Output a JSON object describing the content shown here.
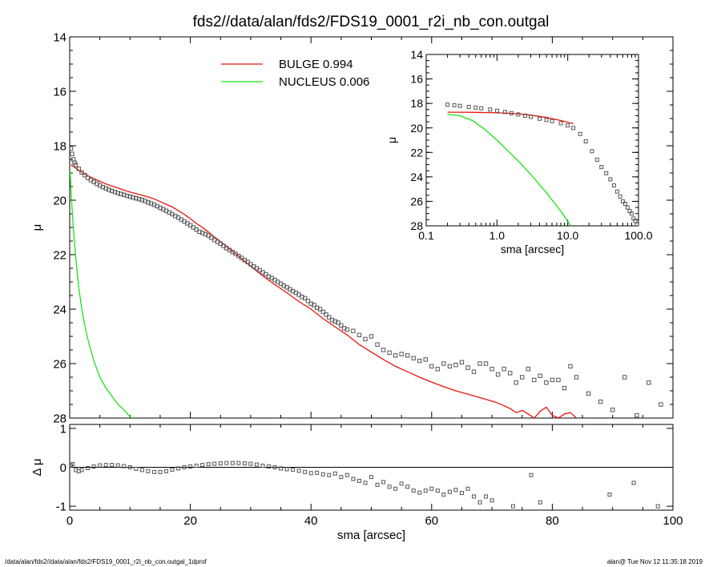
{
  "title": "fds2//data/alan/fds2/FDS19_0001_r2i_nb_con.outgal",
  "footer": {
    "left": "/data/alan/fds2//data/alan/fds2/FDS19_0001_r2i_nb_con.outgal_1dprof",
    "right": "alan@  Tue Nov 12 11:35:18 2019"
  },
  "colors": {
    "bulge": "#e8140f",
    "nucleus": "#19e619",
    "data": "#555555",
    "axis": "#000000"
  },
  "chart_data": [
    {
      "id": "main",
      "type": "scatter",
      "title": "fds2//data/alan/fds2/FDS19_0001_r2i_nb_con.outgal",
      "xlabel": "",
      "ylabel": "μ",
      "xlim": [
        0,
        100
      ],
      "ylim": [
        28,
        14
      ],
      "yreversed": true,
      "yticks": [
        "14",
        "16",
        "18",
        "20",
        "22",
        "24",
        "26",
        "28"
      ],
      "ytick_values": [
        14,
        16,
        18,
        20,
        22,
        24,
        26,
        28
      ],
      "legend": [
        {
          "label": "BULGE",
          "value": "0.994",
          "color": "#e8140f"
        },
        {
          "label": "NUCLEUS",
          "value": "0.006",
          "color": "#19e619"
        }
      ],
      "series": [
        {
          "name": "BULGE",
          "kind": "line",
          "color": "#e8140f",
          "x": [
            0.2,
            1,
            2,
            3,
            4,
            5,
            6,
            7,
            8,
            9,
            10,
            11,
            12,
            13,
            14,
            15,
            16,
            17,
            18,
            19,
            20,
            21,
            22,
            23,
            24,
            25,
            26,
            27,
            28,
            29,
            30,
            32,
            34,
            36,
            38,
            40,
            42,
            44,
            46,
            48,
            50,
            52,
            54,
            56,
            58,
            60,
            62,
            64,
            66,
            68,
            70,
            71,
            72,
            73,
            74,
            75,
            76,
            77,
            78,
            79,
            80,
            81,
            82,
            83,
            84
          ],
          "y": [
            18.7,
            18.82,
            18.97,
            19.1,
            19.21,
            19.31,
            19.4,
            19.48,
            19.55,
            19.63,
            19.7,
            19.76,
            19.82,
            19.88,
            19.95,
            20.05,
            20.15,
            20.25,
            20.38,
            20.52,
            20.68,
            20.85,
            21.0,
            21.17,
            21.35,
            21.52,
            21.7,
            21.88,
            22.05,
            22.25,
            22.42,
            22.78,
            23.1,
            23.4,
            23.72,
            24.0,
            24.35,
            24.65,
            24.95,
            25.3,
            25.58,
            25.85,
            26.1,
            26.3,
            26.5,
            26.68,
            26.85,
            27.0,
            27.12,
            27.25,
            27.38,
            27.45,
            27.55,
            27.65,
            27.8,
            27.72,
            27.85,
            28.0,
            27.75,
            27.6,
            27.9,
            28.0,
            27.85,
            27.8,
            28.0
          ]
        },
        {
          "name": "NUCLEUS",
          "kind": "line",
          "color": "#19e619",
          "x": [
            0.05,
            0.3,
            0.6,
            1,
            1.5,
            2,
            2.5,
            3,
            3.5,
            4,
            5,
            6,
            7,
            8,
            9,
            10,
            11,
            12
          ],
          "y": [
            18.9,
            20.0,
            21.0,
            22.1,
            23.2,
            24.0,
            24.6,
            25.1,
            25.5,
            25.9,
            26.5,
            26.9,
            27.2,
            27.5,
            27.7,
            27.95,
            28.1,
            28.3
          ]
        },
        {
          "name": "data",
          "kind": "points",
          "color": "#555555",
          "x": [
            0.2,
            0.4,
            0.6,
            0.8,
            1,
            1.5,
            2,
            2.5,
            3,
            3.5,
            4,
            4.5,
            5,
            5.5,
            6,
            6.5,
            7,
            7.5,
            8,
            8.5,
            9,
            9.5,
            10,
            10.5,
            11,
            11.5,
            12,
            12.5,
            13,
            13.5,
            14,
            14.5,
            15,
            15.5,
            16,
            16.5,
            17,
            17.5,
            18,
            18.5,
            19,
            19.5,
            20,
            20.5,
            21,
            21.5,
            22,
            22.5,
            23,
            23.5,
            24,
            24.5,
            25,
            25.5,
            26,
            26.5,
            27,
            27.5,
            28,
            28.5,
            29,
            29.5,
            30,
            30.5,
            31,
            31.5,
            32,
            32.5,
            33,
            33.5,
            34,
            34.5,
            35,
            35.5,
            36,
            36.5,
            37,
            37.5,
            38,
            38.5,
            39,
            39.5,
            40,
            40.5,
            41,
            41.5,
            42,
            42.5,
            43,
            43.5,
            44,
            44.5,
            45,
            45.5,
            46,
            47,
            48,
            49,
            50,
            51,
            52,
            53,
            54,
            55,
            56,
            57,
            58,
            59,
            60,
            61,
            62,
            63,
            64,
            65,
            66,
            67,
            68,
            69,
            70,
            71,
            72,
            73,
            74,
            75,
            76,
            77,
            78,
            79,
            80,
            81,
            82,
            83,
            84,
            86,
            88,
            90,
            92,
            94,
            96,
            98
          ],
          "y": [
            18.1,
            18.3,
            18.5,
            18.62,
            18.7,
            18.85,
            18.98,
            19.08,
            19.18,
            19.26,
            19.33,
            19.4,
            19.46,
            19.52,
            19.57,
            19.62,
            19.66,
            19.7,
            19.74,
            19.77,
            19.8,
            19.84,
            19.87,
            19.9,
            19.93,
            19.96,
            19.99,
            20.03,
            20.08,
            20.12,
            20.17,
            20.22,
            20.28,
            20.33,
            20.39,
            20.45,
            20.51,
            20.58,
            20.64,
            20.71,
            20.78,
            20.85,
            20.92,
            21.0,
            21.08,
            21.16,
            21.2,
            21.25,
            21.3,
            21.38,
            21.46,
            21.53,
            21.6,
            21.68,
            21.76,
            21.83,
            21.9,
            21.97,
            22.05,
            22.12,
            22.2,
            22.27,
            22.35,
            22.43,
            22.5,
            22.57,
            22.65,
            22.72,
            22.8,
            22.86,
            22.93,
            23.0,
            23.07,
            23.14,
            23.2,
            23.27,
            23.34,
            23.4,
            23.47,
            23.55,
            23.6,
            23.7,
            23.8,
            23.85,
            23.95,
            24.0,
            24.1,
            24.2,
            24.3,
            24.4,
            24.45,
            24.5,
            24.6,
            24.7,
            24.75,
            24.8,
            24.95,
            25.1,
            25.0,
            25.3,
            25.5,
            25.6,
            25.7,
            25.65,
            25.7,
            25.8,
            25.9,
            25.85,
            26.1,
            26.2,
            26.0,
            26.1,
            26.05,
            25.95,
            26.15,
            26.3,
            26.0,
            26.0,
            26.2,
            26.4,
            26.2,
            26.35,
            26.7,
            26.5,
            26.2,
            26.6,
            26.45,
            26.7,
            26.6,
            26.6,
            26.9,
            26.1,
            26.5,
            27.1,
            27.4,
            27.7,
            26.5,
            27.9,
            26.7,
            27.5
          ]
        }
      ]
    },
    {
      "id": "inset",
      "type": "scatter",
      "xlabel": "sma [arcsec]",
      "ylabel": "μ",
      "xscale": "log",
      "xlim": [
        0.1,
        100
      ],
      "ylim": [
        28,
        14
      ],
      "yreversed": true,
      "xticks": [
        "0.1",
        "1.0",
        "10.0",
        "100.0"
      ],
      "xtick_values": [
        0.1,
        1,
        10,
        100
      ],
      "yticks": [
        "14",
        "16",
        "18",
        "20",
        "22",
        "24",
        "26",
        "28"
      ],
      "ytick_values": [
        14,
        16,
        18,
        20,
        22,
        24,
        26,
        28
      ],
      "series": [
        {
          "name": "BULGE",
          "kind": "line",
          "color": "#e8140f",
          "x": [
            0.2,
            0.3,
            0.5,
            0.8,
            1.2,
            2,
            3,
            5,
            8,
            12
          ],
          "y": [
            18.72,
            18.72,
            18.73,
            18.75,
            18.78,
            18.85,
            18.95,
            19.15,
            19.4,
            19.65
          ]
        },
        {
          "name": "NUCLEUS",
          "kind": "line",
          "color": "#19e619",
          "x": [
            0.2,
            0.3,
            0.45,
            0.7,
            1,
            1.5,
            2,
            3,
            5,
            8,
            12
          ],
          "y": [
            18.9,
            19.0,
            19.4,
            20.2,
            21.0,
            22.0,
            22.7,
            23.8,
            25.3,
            26.8,
            28.3
          ]
        },
        {
          "name": "data",
          "kind": "points",
          "color": "#555555",
          "x": [
            0.2,
            0.25,
            0.3,
            0.4,
            0.5,
            0.6,
            0.8,
            1,
            1.3,
            1.6,
            2,
            2.5,
            3,
            4,
            5,
            6,
            8,
            10,
            12,
            15,
            18,
            22,
            26,
            30,
            35,
            40,
            45,
            50,
            55,
            60,
            65,
            70,
            75,
            80,
            85,
            90,
            95
          ],
          "y": [
            18.1,
            18.15,
            18.2,
            18.28,
            18.34,
            18.4,
            18.5,
            18.6,
            18.7,
            18.8,
            18.9,
            19.0,
            19.1,
            19.25,
            19.35,
            19.45,
            19.62,
            19.8,
            20.0,
            20.5,
            21.1,
            21.9,
            22.6,
            23.2,
            23.7,
            24.2,
            24.7,
            25.2,
            25.6,
            26.0,
            26.2,
            26.5,
            26.8,
            27.0,
            27.4,
            27.6,
            27.9
          ]
        }
      ]
    },
    {
      "id": "residual",
      "type": "scatter",
      "xlabel": "sma [arcsec]",
      "ylabel": "Δ μ",
      "xlim": [
        0,
        100
      ],
      "ylim": [
        -1.1,
        1.1
      ],
      "xticks": [
        "0",
        "20",
        "40",
        "60",
        "80",
        "100"
      ],
      "xtick_values": [
        0,
        20,
        40,
        60,
        80,
        100
      ],
      "yticks": [
        "1",
        "0",
        "-1"
      ],
      "ytick_values": [
        1,
        0,
        -1
      ],
      "zero_line": true,
      "series": [
        {
          "name": "residual",
          "kind": "points",
          "color": "#555555",
          "x": [
            0.2,
            0.5,
            1,
            1.5,
            2,
            3,
            4,
            5,
            6,
            7,
            8,
            9,
            10,
            11,
            12,
            13,
            14,
            15,
            16,
            17,
            18,
            19,
            20,
            21,
            22,
            23,
            24,
            25,
            26,
            27,
            28,
            29,
            30,
            31,
            32,
            33,
            34,
            35,
            36,
            37,
            38,
            39,
            40,
            41,
            42,
            43,
            44,
            45,
            46,
            47,
            48,
            49,
            50,
            51,
            52,
            53,
            54,
            55,
            56,
            57,
            58,
            59,
            60,
            61,
            62,
            63,
            64,
            65,
            66,
            67,
            68,
            69,
            70,
            73.5,
            76.5,
            78,
            89.5,
            93.5,
            97.5
          ],
          "y": [
            0.05,
            0.08,
            -0.07,
            -0.1,
            -0.07,
            -0.02,
            0.02,
            0.05,
            0.06,
            0.06,
            0.05,
            0.03,
            0.0,
            -0.04,
            -0.07,
            -0.1,
            -0.12,
            -0.12,
            -0.1,
            -0.06,
            -0.03,
            0.0,
            0.02,
            0.04,
            0.06,
            0.08,
            0.09,
            0.1,
            0.11,
            0.11,
            0.11,
            0.1,
            0.09,
            0.07,
            0.04,
            0.02,
            0.0,
            -0.03,
            -0.05,
            -0.06,
            -0.09,
            -0.12,
            -0.15,
            -0.14,
            -0.18,
            -0.2,
            -0.16,
            -0.25,
            -0.2,
            -0.3,
            -0.35,
            -0.4,
            -0.25,
            -0.45,
            -0.38,
            -0.5,
            -0.55,
            -0.42,
            -0.5,
            -0.6,
            -0.65,
            -0.6,
            -0.55,
            -0.6,
            -0.7,
            -0.63,
            -0.58,
            -0.66,
            -0.55,
            -0.75,
            -0.9,
            -0.75,
            -0.85,
            -1.0,
            -0.2,
            -0.9,
            -0.7,
            -0.4,
            -1.0
          ]
        }
      ]
    }
  ]
}
